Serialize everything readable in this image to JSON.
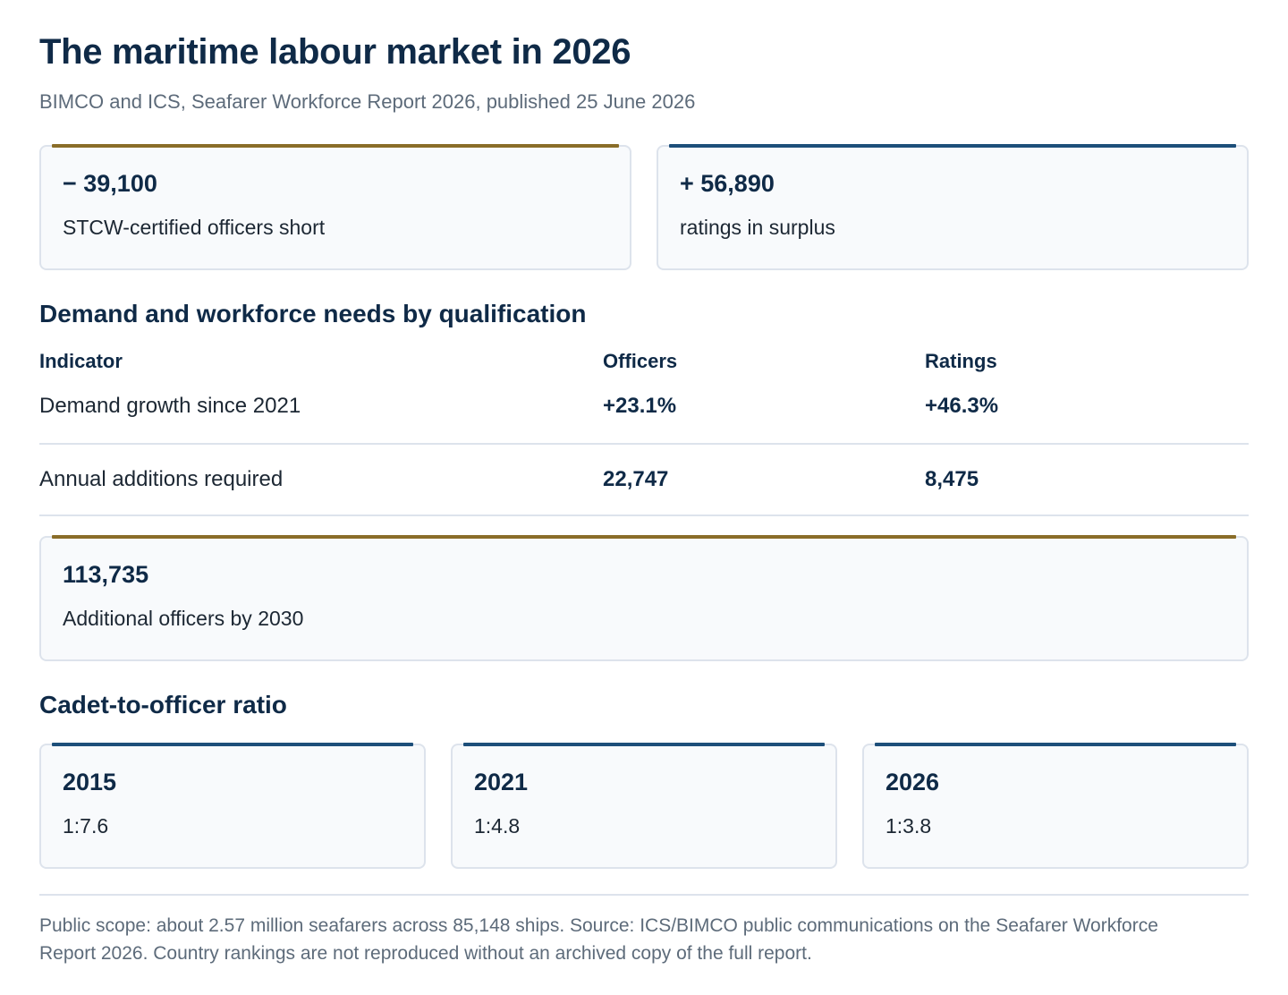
{
  "header": {
    "title": "The maritime labour market in 2026",
    "subtitle": "BIMCO and ICS, Seafarer Workforce Report 2026, published 25 June 2026"
  },
  "kpis": [
    {
      "value": "− 39,100",
      "label": "STCW-certified officers short",
      "accent": "#8a6d28"
    },
    {
      "value": "+ 56,890",
      "label": "ratings in surplus",
      "accent": "#1d4f7a"
    }
  ],
  "needs": {
    "heading": "Demand and workforce needs by qualification",
    "columns": [
      "Indicator",
      "Officers",
      "Ratings"
    ],
    "rows": [
      {
        "indicator": "Demand growth since 2021",
        "officers": "+23.1%",
        "ratings": "+46.3%"
      },
      {
        "indicator": "Annual additions required",
        "officers": "22,747",
        "ratings": "8,475"
      }
    ]
  },
  "additional": {
    "value": "113,735",
    "label": "Additional officers by 2030",
    "accent": "#8a6d28"
  },
  "ratio": {
    "heading": "Cadet-to-officer ratio",
    "items": [
      {
        "year": "2015",
        "value": "1:7.6"
      },
      {
        "year": "2021",
        "value": "1:4.8"
      },
      {
        "year": "2026",
        "value": "1:3.8"
      }
    ],
    "accent": "#1d4f7a"
  },
  "footnote": "Public scope: about 2.57 million seafarers across 85,148 ships. Source: ICS/BIMCO public communications on the Seafarer Workforce Report 2026. Country rankings are not reproduced without an archived copy of the full report."
}
